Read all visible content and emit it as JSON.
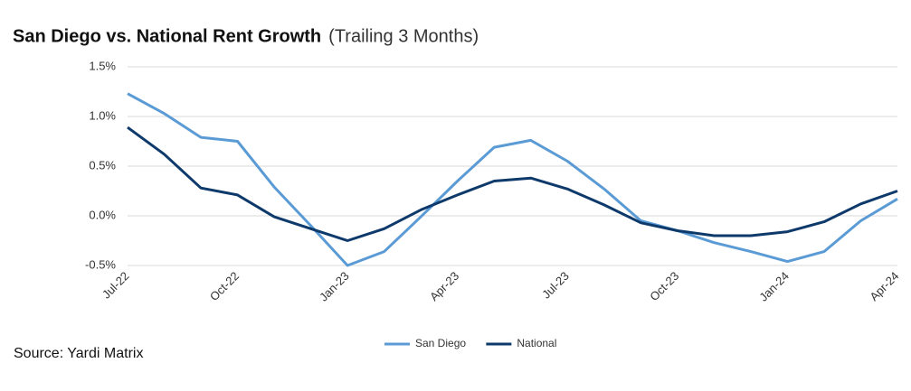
{
  "chart_data": {
    "type": "line",
    "title": "San Diego vs. National Rent Growth",
    "subtitle": "(Trailing 3 Months)",
    "source": "Source: Yardi Matrix",
    "categories": [
      "Jul-22",
      null,
      null,
      "Oct-22",
      null,
      null,
      "Jan-23",
      null,
      null,
      "Apr-23",
      null,
      null,
      "Jul-23",
      null,
      null,
      "Oct-23",
      null,
      null,
      "Jan-24",
      null,
      null,
      "Apr-24"
    ],
    "series": [
      {
        "name": "San Diego",
        "color": "#5b9bd5",
        "values": [
          1.23,
          1.03,
          0.79,
          0.75,
          0.29,
          -0.1,
          -0.5,
          -0.36,
          -0.01,
          0.35,
          0.69,
          0.76,
          0.55,
          0.27,
          -0.05,
          -0.15,
          -0.27,
          -0.36,
          -0.46,
          -0.36,
          -0.05,
          0.17
        ]
      },
      {
        "name": "National",
        "color": "#0e3a6b",
        "values": [
          0.89,
          0.62,
          0.28,
          0.21,
          -0.01,
          -0.13,
          -0.25,
          -0.13,
          0.06,
          0.21,
          0.35,
          0.38,
          0.27,
          0.11,
          -0.07,
          -0.15,
          -0.2,
          -0.2,
          -0.16,
          -0.06,
          0.12,
          0.25
        ]
      }
    ],
    "ylim": [
      -0.5,
      1.5
    ],
    "yticks": [
      {
        "value": -0.5,
        "label": "-0.5%"
      },
      {
        "value": 0,
        "label": "0.0%"
      },
      {
        "value": 0.5,
        "label": "0.5%"
      },
      {
        "value": 1,
        "label": "1.0%"
      },
      {
        "value": 1.5,
        "label": "1.5%"
      }
    ],
    "grid": true
  }
}
